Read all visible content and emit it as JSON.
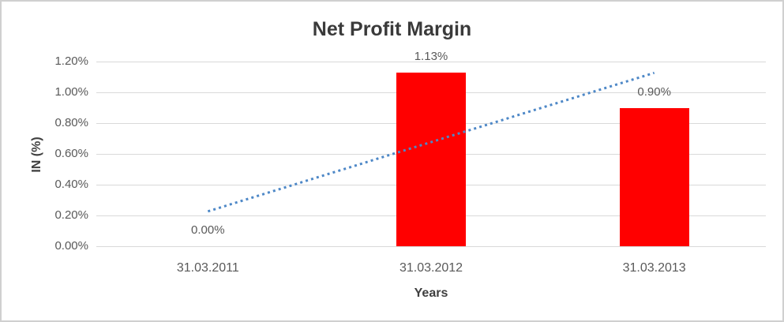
{
  "frame": {
    "background_color": "#ffffff",
    "border_color": "#d0d0d0"
  },
  "chart_data": {
    "type": "bar",
    "title": "Net Profit Margin",
    "xlabel": "Years",
    "ylabel": "IN (%)",
    "categories": [
      "31.03.2011",
      "31.03.2012",
      "31.03.2013"
    ],
    "values": [
      0.0,
      1.13,
      0.9
    ],
    "data_labels": [
      "0.00%",
      "1.13%",
      "0.90%"
    ],
    "y_ticks": [
      "0.00%",
      "0.20%",
      "0.40%",
      "0.60%",
      "0.80%",
      "1.00%",
      "1.20%"
    ],
    "ylim": [
      0,
      1.2
    ],
    "grid": true,
    "legend": "none",
    "bar_color": "#ff0000",
    "gridline_color": "#d9d9d9",
    "text_color": "#595959",
    "title_color": "#3a3a3a",
    "trendline": {
      "type": "linear",
      "style": "dotted",
      "color": "#4e88c7",
      "start_value": 0.2267,
      "end_value": 1.1267
    }
  }
}
